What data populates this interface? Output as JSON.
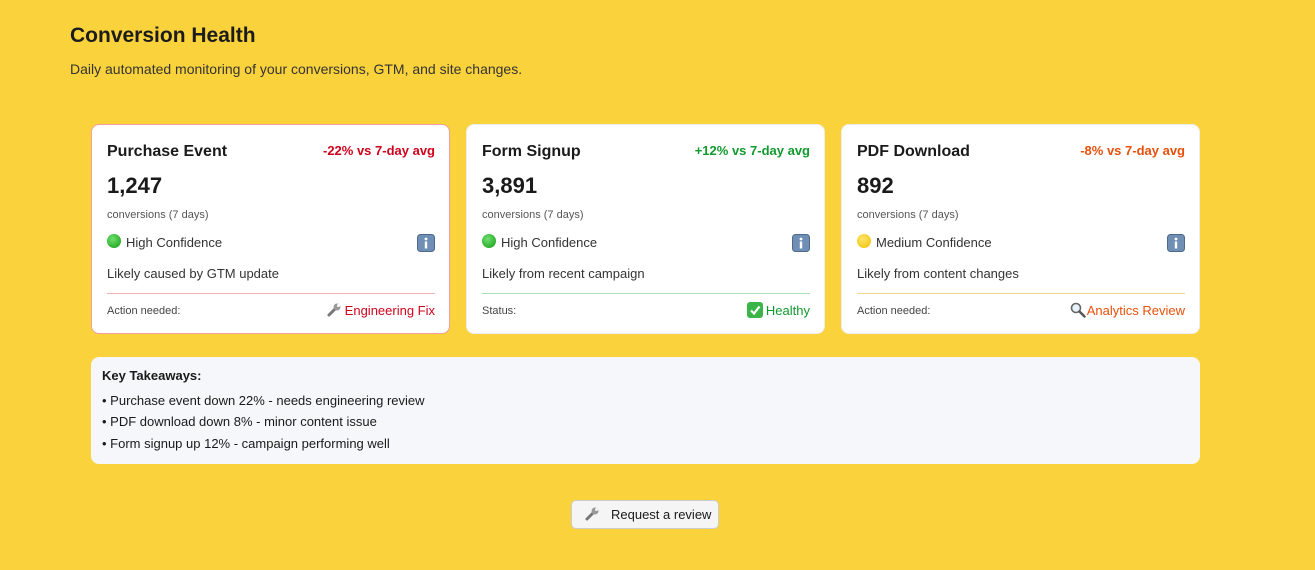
{
  "header": {
    "title": "Conversion Health",
    "subtitle": "Daily automated monitoring of your conversions, GTM, and site changes."
  },
  "cards": [
    {
      "name": "Purchase Event",
      "change": "-22% vs 7-day avg",
      "count": "1,247",
      "count_label": "conversions (7 days)",
      "confidence": "High Confidence",
      "note": "Likely caused by GTM update",
      "footer_label": "Action needed:",
      "footer_value": "Engineering Fix"
    },
    {
      "name": "Form Signup",
      "change": "+12% vs 7-day avg",
      "count": "3,891",
      "count_label": "conversions (7 days)",
      "confidence": "High Confidence",
      "note": "Likely from recent campaign",
      "footer_label": "Status:",
      "footer_value": "Healthy"
    },
    {
      "name": "PDF Download",
      "change": "-8% vs 7-day avg",
      "count": "892",
      "count_label": "conversions (7 days)",
      "confidence": "Medium Confidence",
      "note": "Likely from content changes",
      "footer_label": "Action needed:",
      "footer_value": "Analytics Review"
    }
  ],
  "takeaways": {
    "title": "Key Takeaways:",
    "items": [
      "• Purchase event down 22% - needs engineering review",
      "• PDF download down 8% - minor content issue",
      "• Form signup up 12% - campaign performing well"
    ]
  },
  "button": {
    "label": "Request a review"
  }
}
